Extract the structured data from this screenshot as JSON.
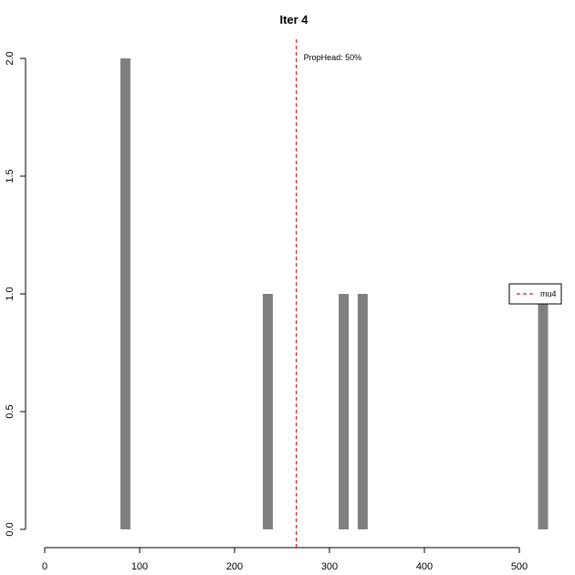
{
  "chart_data": {
    "type": "bar",
    "title": "Iter 4",
    "xlabel": "",
    "ylabel": "",
    "xlim": [
      0,
      500
    ],
    "ylim": [
      0,
      2
    ],
    "x_ticks": [
      0,
      100,
      200,
      300,
      400,
      500
    ],
    "y_ticks": [
      "0.0",
      "0.5",
      "1.0",
      "1.5",
      "2.0"
    ],
    "grid": false,
    "bar_color": "#808080",
    "bars": [
      {
        "x": 85,
        "value": 2
      },
      {
        "x": 235,
        "value": 1
      },
      {
        "x": 315,
        "value": 1
      },
      {
        "x": 335,
        "value": 1
      },
      {
        "x": 525,
        "value": 1
      }
    ],
    "vline": {
      "x": 265,
      "color": "#e41a1c",
      "style": "dashed"
    },
    "annotation": "PropHead: 50%",
    "legend": {
      "position": "right",
      "entries": [
        {
          "label": "mu4",
          "color": "#e41a1c",
          "style": "dashed"
        }
      ]
    }
  }
}
